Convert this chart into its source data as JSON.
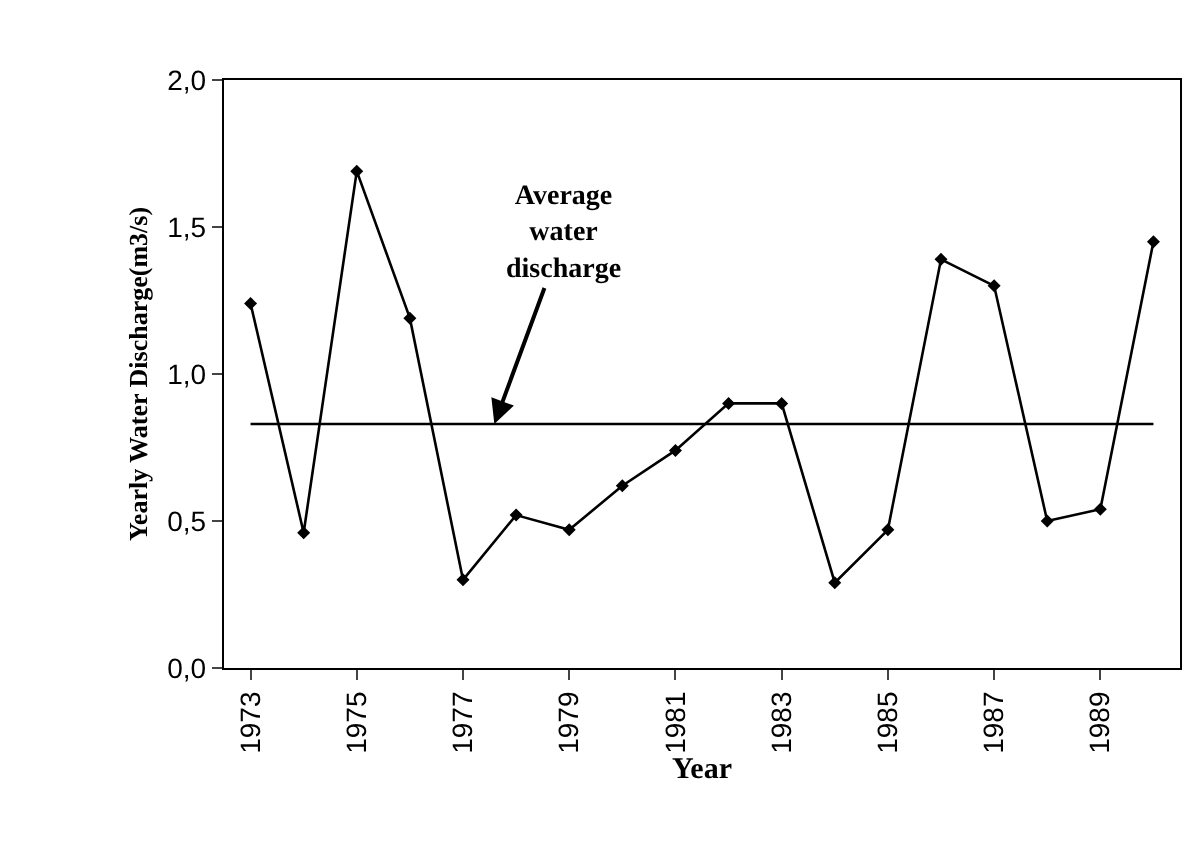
{
  "chart_data": {
    "type": "line",
    "xlabel": "Year",
    "ylabel": "Yearly Water Discharge(m3/s)",
    "categories": [
      "1973",
      null,
      "1975",
      null,
      "1977",
      null,
      "1979",
      null,
      "1981",
      null,
      "1983",
      null,
      "1985",
      null,
      "1987",
      null,
      "1989",
      null
    ],
    "series": [
      {
        "color": "#000000",
        "values": [
          1.24,
          0.46,
          1.69,
          1.19,
          0.3,
          0.52,
          0.47,
          0.62,
          0.74,
          0.9,
          0.9,
          0.29,
          0.47,
          1.39,
          1.3,
          0.5,
          0.54,
          1.45
        ]
      }
    ],
    "ylim": [
      0,
      2
    ],
    "yticks": [
      {
        "value": 0,
        "label": "0,0"
      },
      {
        "value": 0.5,
        "label": "0,5"
      },
      {
        "value": 1,
        "label": "1,0"
      },
      {
        "value": 1.5,
        "label": "1,5"
      },
      {
        "value": 2,
        "label": "2,0"
      }
    ],
    "ref_lines": [
      {
        "axis": "y",
        "value": 0.83,
        "label": "Average\nwater\ndischarge",
        "color": "#000000"
      }
    ],
    "marker": "diamond",
    "line_style": "solid"
  }
}
